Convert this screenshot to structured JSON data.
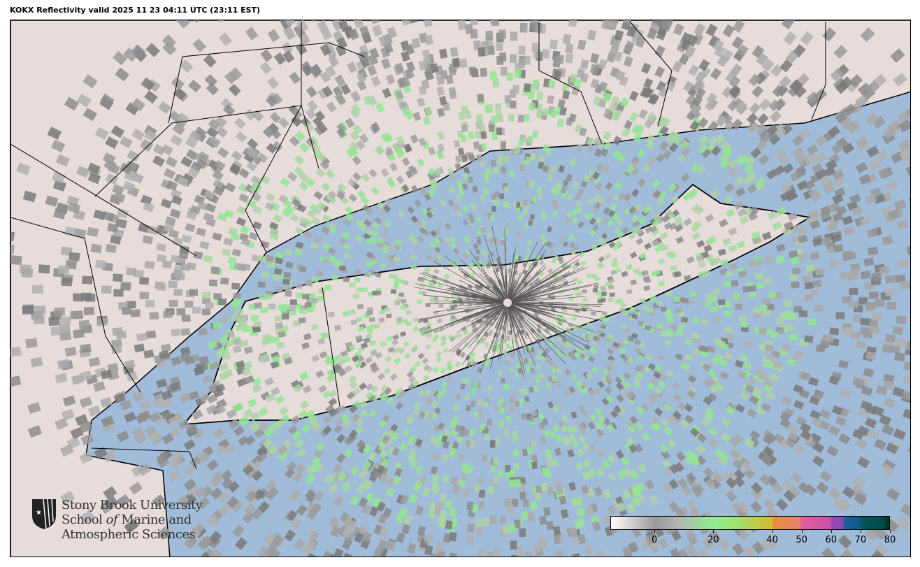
{
  "title": "KOKX Reflectivity valid 2025 11 23 04:11 UTC (23:11 EST)",
  "map": {
    "radar_site": "KOKX",
    "colors": {
      "ocean": "#a0bcd8",
      "land": "#e6dcda",
      "echo_gray": "#a0a0a0",
      "echo_green": "#90e890",
      "borders": "#000000"
    }
  },
  "logo": {
    "line1": "Stony Brook University",
    "line2a": "School ",
    "line2b": "of",
    "line2c": " Marine and",
    "line3": "Atmospheric Sciences"
  },
  "colorbar": {
    "range": [
      -15,
      80
    ],
    "ticks": [
      {
        "value": 0,
        "label": "0"
      },
      {
        "value": 20,
        "label": "20"
      },
      {
        "value": 40,
        "label": "40"
      },
      {
        "value": 50,
        "label": "50"
      },
      {
        "value": 60,
        "label": "60"
      },
      {
        "value": 70,
        "label": "70"
      },
      {
        "value": 80,
        "label": "80"
      }
    ]
  }
}
